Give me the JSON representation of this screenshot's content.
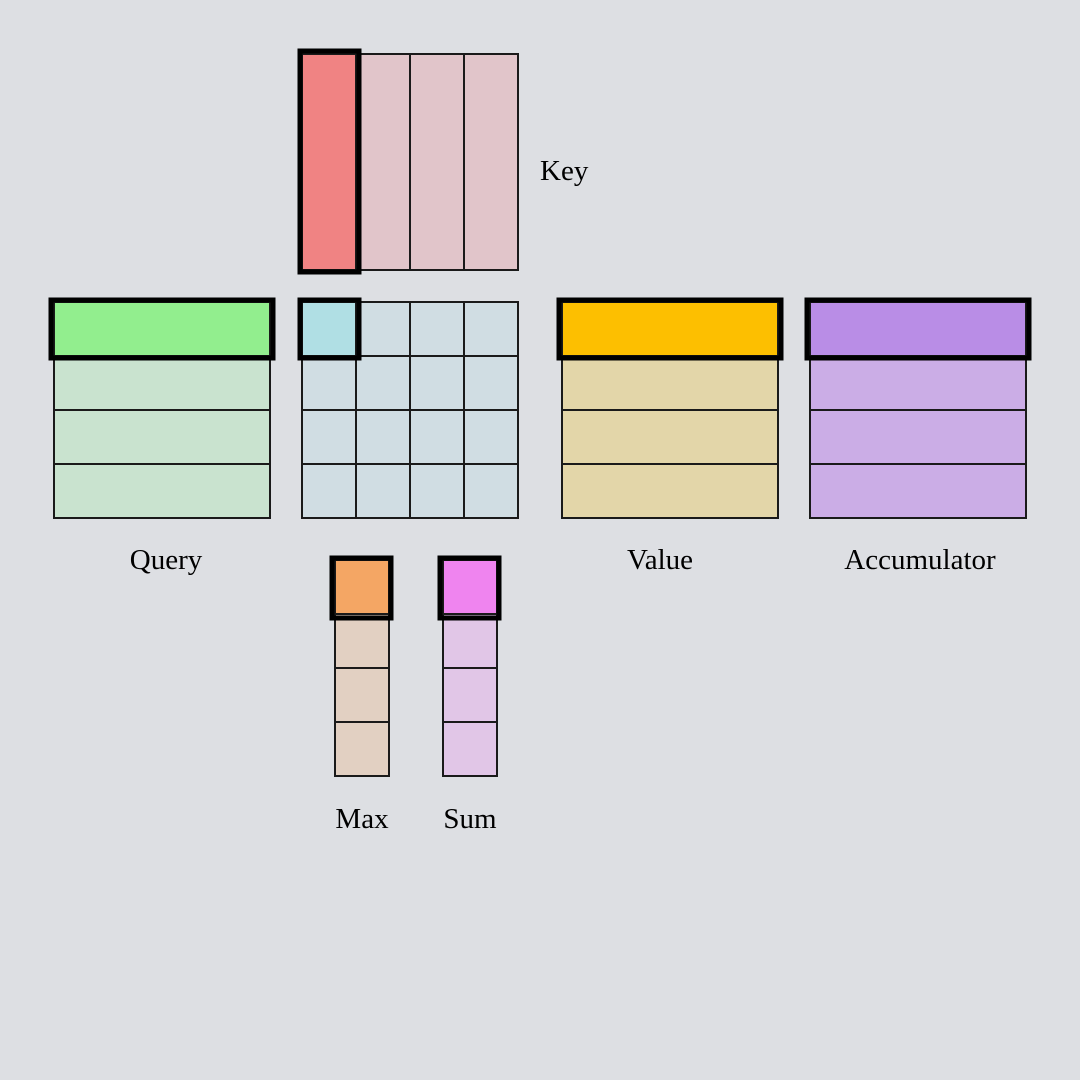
{
  "labels": {
    "key": "Key",
    "query": "Query",
    "value": "Value",
    "accumulator": "Accumulator",
    "max": "Max",
    "sum": "Sum"
  },
  "colors": {
    "background": "#dddfe3",
    "key_cell": "#e1c5ca",
    "key_highlight": "#f08383",
    "query_cell": "#c9e3cf",
    "query_highlight": "#92ee8e",
    "scores_cell": "#d0dde3",
    "scores_highlight": "#b0dfe4",
    "value_cell": "#e3d6a9",
    "value_highlight": "#fdbf00",
    "accumulator_cell": "#cbade6",
    "accumulator_highlight": "#b98de6",
    "max_cell": "#e2d0c2",
    "max_highlight": "#f4a664",
    "sum_cell": "#e1c6e7",
    "sum_highlight": "#ef84ef"
  },
  "blocks": {
    "key": {
      "rows": 1,
      "cols": 4,
      "highlight": "column 1"
    },
    "query": {
      "rows": 4,
      "cols": 1,
      "highlight": "row 1"
    },
    "scores": {
      "rows": 4,
      "cols": 4,
      "highlight": "row 1, column 1"
    },
    "value": {
      "rows": 4,
      "cols": 1,
      "highlight": "row 1"
    },
    "accumulator": {
      "rows": 4,
      "cols": 1,
      "highlight": "row 1"
    },
    "max": {
      "rows": 4,
      "cols": 1,
      "highlight": "row 1"
    },
    "sum": {
      "rows": 4,
      "cols": 1,
      "highlight": "row 1"
    }
  }
}
